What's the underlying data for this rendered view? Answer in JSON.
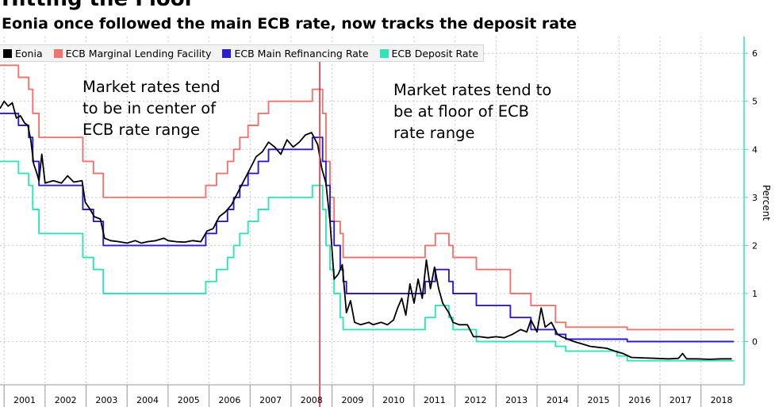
{
  "header": {
    "title": "Hitting the Floor",
    "subtitle": "Eonia once followed the main ECB rate, now tracks the deposit rate"
  },
  "legend": [
    {
      "label": "Eonia",
      "color": "#000000"
    },
    {
      "label": "ECB Marginal Lending Facility",
      "color": "#f2726f"
    },
    {
      "label": "ECB Main Refinancing Rate",
      "color": "#2b1bd1"
    },
    {
      "label": "ECB Deposit Rate",
      "color": "#2ee6b4"
    }
  ],
  "annotations": {
    "left": "Market rates tend\nto be in center of\nECB rate range",
    "right": "Market rates tend to\nbe at floor of ECB\nrate range"
  },
  "colors": {
    "marker_line": "#d8313f",
    "axis": "#2ee6b4",
    "grid": "#c8c8c8"
  },
  "chart_data": {
    "type": "line",
    "title": "Hitting the Floor",
    "subtitle": "Eonia once followed the main ECB rate, now tracks the deposit rate",
    "xlabel": "",
    "ylabel": "Percent",
    "xlim": [
      2000.9,
      2019.05
    ],
    "ylim": [
      -0.9,
      6.35
    ],
    "x_ticks": [
      "2001",
      "2002",
      "2003",
      "2004",
      "2005",
      "2006",
      "2007",
      "2008",
      "2009",
      "2010",
      "2011",
      "2012",
      "2013",
      "2014",
      "2015",
      "2016",
      "2017",
      "2018"
    ],
    "y_ticks": [
      0,
      1,
      2,
      3,
      4,
      5,
      6
    ],
    "vertical_marker_x": 2008.7,
    "series": [
      {
        "name": "ECB Marginal Lending Facility",
        "color": "#f2726f",
        "step": true,
        "points": [
          [
            2000.9,
            5.75
          ],
          [
            2001.35,
            5.5
          ],
          [
            2001.6,
            5.25
          ],
          [
            2001.7,
            4.75
          ],
          [
            2001.85,
            4.25
          ],
          [
            2002.92,
            3.75
          ],
          [
            2003.18,
            3.5
          ],
          [
            2003.42,
            3.0
          ],
          [
            2005.92,
            3.25
          ],
          [
            2006.18,
            3.5
          ],
          [
            2006.45,
            3.75
          ],
          [
            2006.6,
            4.0
          ],
          [
            2006.75,
            4.25
          ],
          [
            2006.95,
            4.5
          ],
          [
            2007.2,
            4.75
          ],
          [
            2007.45,
            5.0
          ],
          [
            2008.52,
            5.25
          ],
          [
            2008.77,
            4.75
          ],
          [
            2008.85,
            3.75
          ],
          [
            2008.95,
            3.0
          ],
          [
            2009.05,
            2.5
          ],
          [
            2009.2,
            2.25
          ],
          [
            2009.27,
            1.75
          ],
          [
            2011.27,
            2.0
          ],
          [
            2011.52,
            2.25
          ],
          [
            2011.85,
            2.0
          ],
          [
            2011.95,
            1.75
          ],
          [
            2012.52,
            1.5
          ],
          [
            2013.35,
            1.0
          ],
          [
            2013.85,
            0.75
          ],
          [
            2014.45,
            0.4
          ],
          [
            2014.7,
            0.3
          ],
          [
            2015.95,
            0.3
          ],
          [
            2016.2,
            0.25
          ],
          [
            2018.8,
            0.25
          ]
        ]
      },
      {
        "name": "ECB Main Refinancing Rate",
        "color": "#2b1bd1",
        "step": true,
        "points": [
          [
            2000.9,
            4.75
          ],
          [
            2001.35,
            4.5
          ],
          [
            2001.6,
            4.25
          ],
          [
            2001.7,
            3.75
          ],
          [
            2001.85,
            3.25
          ],
          [
            2002.92,
            2.75
          ],
          [
            2003.18,
            2.5
          ],
          [
            2003.42,
            2.0
          ],
          [
            2005.92,
            2.25
          ],
          [
            2006.18,
            2.5
          ],
          [
            2006.45,
            2.75
          ],
          [
            2006.6,
            3.0
          ],
          [
            2006.75,
            3.25
          ],
          [
            2006.95,
            3.5
          ],
          [
            2007.2,
            3.75
          ],
          [
            2007.45,
            4.0
          ],
          [
            2008.52,
            4.25
          ],
          [
            2008.77,
            3.75
          ],
          [
            2008.85,
            3.25
          ],
          [
            2008.95,
            2.5
          ],
          [
            2009.05,
            2.0
          ],
          [
            2009.2,
            1.5
          ],
          [
            2009.27,
            1.25
          ],
          [
            2009.35,
            1.0
          ],
          [
            2011.27,
            1.25
          ],
          [
            2011.52,
            1.5
          ],
          [
            2011.85,
            1.25
          ],
          [
            2011.95,
            1.0
          ],
          [
            2012.52,
            0.75
          ],
          [
            2013.35,
            0.5
          ],
          [
            2013.85,
            0.25
          ],
          [
            2014.45,
            0.15
          ],
          [
            2014.7,
            0.05
          ],
          [
            2016.2,
            0.0
          ],
          [
            2018.8,
            0.0
          ]
        ]
      },
      {
        "name": "ECB Deposit Rate",
        "color": "#2ee6b4",
        "step": true,
        "points": [
          [
            2000.9,
            3.75
          ],
          [
            2001.35,
            3.5
          ],
          [
            2001.6,
            3.25
          ],
          [
            2001.7,
            2.75
          ],
          [
            2001.85,
            2.25
          ],
          [
            2002.92,
            1.75
          ],
          [
            2003.18,
            1.5
          ],
          [
            2003.42,
            1.0
          ],
          [
            2005.92,
            1.25
          ],
          [
            2006.18,
            1.5
          ],
          [
            2006.45,
            1.75
          ],
          [
            2006.6,
            2.0
          ],
          [
            2006.75,
            2.25
          ],
          [
            2006.95,
            2.5
          ],
          [
            2007.2,
            2.75
          ],
          [
            2007.45,
            3.0
          ],
          [
            2008.52,
            3.25
          ],
          [
            2008.77,
            2.75
          ],
          [
            2008.85,
            2.0
          ],
          [
            2008.95,
            1.5
          ],
          [
            2009.05,
            1.0
          ],
          [
            2009.2,
            0.5
          ],
          [
            2009.27,
            0.25
          ],
          [
            2011.27,
            0.5
          ],
          [
            2011.52,
            0.75
          ],
          [
            2011.85,
            0.5
          ],
          [
            2011.95,
            0.25
          ],
          [
            2012.52,
            0.0
          ],
          [
            2014.45,
            -0.1
          ],
          [
            2014.7,
            -0.2
          ],
          [
            2015.95,
            -0.3
          ],
          [
            2016.2,
            -0.4
          ],
          [
            2018.8,
            -0.4
          ]
        ]
      },
      {
        "name": "Eonia",
        "color": "#000000",
        "step": false,
        "points": [
          [
            2000.9,
            4.85
          ],
          [
            2001.0,
            5.0
          ],
          [
            2001.1,
            4.9
          ],
          [
            2001.2,
            4.97
          ],
          [
            2001.3,
            4.65
          ],
          [
            2001.4,
            4.7
          ],
          [
            2001.5,
            4.55
          ],
          [
            2001.58,
            4.5
          ],
          [
            2001.65,
            4.2
          ],
          [
            2001.72,
            3.7
          ],
          [
            2001.8,
            3.5
          ],
          [
            2001.85,
            3.35
          ],
          [
            2001.92,
            3.9
          ],
          [
            2002.0,
            3.3
          ],
          [
            2002.2,
            3.35
          ],
          [
            2002.4,
            3.3
          ],
          [
            2002.55,
            3.45
          ],
          [
            2002.7,
            3.32
          ],
          [
            2002.9,
            3.35
          ],
          [
            2002.98,
            2.9
          ],
          [
            2003.1,
            2.75
          ],
          [
            2003.2,
            2.6
          ],
          [
            2003.35,
            2.55
          ],
          [
            2003.45,
            2.15
          ],
          [
            2003.6,
            2.1
          ],
          [
            2003.8,
            2.08
          ],
          [
            2004.0,
            2.05
          ],
          [
            2004.2,
            2.1
          ],
          [
            2004.35,
            2.05
          ],
          [
            2004.5,
            2.08
          ],
          [
            2004.7,
            2.1
          ],
          [
            2004.9,
            2.15
          ],
          [
            2005.0,
            2.1
          ],
          [
            2005.2,
            2.08
          ],
          [
            2005.4,
            2.07
          ],
          [
            2005.6,
            2.1
          ],
          [
            2005.8,
            2.08
          ],
          [
            2005.95,
            2.3
          ],
          [
            2006.1,
            2.35
          ],
          [
            2006.25,
            2.6
          ],
          [
            2006.4,
            2.7
          ],
          [
            2006.55,
            2.85
          ],
          [
            2006.7,
            3.1
          ],
          [
            2006.85,
            3.35
          ],
          [
            2007.0,
            3.6
          ],
          [
            2007.15,
            3.85
          ],
          [
            2007.3,
            3.95
          ],
          [
            2007.45,
            4.15
          ],
          [
            2007.6,
            4.05
          ],
          [
            2007.75,
            3.9
          ],
          [
            2007.9,
            4.2
          ],
          [
            2008.05,
            4.05
          ],
          [
            2008.2,
            4.15
          ],
          [
            2008.35,
            4.3
          ],
          [
            2008.5,
            4.35
          ],
          [
            2008.65,
            4.1
          ],
          [
            2008.75,
            3.6
          ],
          [
            2008.85,
            3.3
          ],
          [
            2008.95,
            2.5
          ],
          [
            2009.05,
            1.3
          ],
          [
            2009.15,
            1.4
          ],
          [
            2009.25,
            1.6
          ],
          [
            2009.35,
            0.6
          ],
          [
            2009.45,
            0.85
          ],
          [
            2009.55,
            0.4
          ],
          [
            2009.7,
            0.35
          ],
          [
            2009.9,
            0.4
          ],
          [
            2010.0,
            0.35
          ],
          [
            2010.2,
            0.4
          ],
          [
            2010.35,
            0.35
          ],
          [
            2010.5,
            0.45
          ],
          [
            2010.6,
            0.7
          ],
          [
            2010.7,
            0.9
          ],
          [
            2010.8,
            0.55
          ],
          [
            2010.9,
            1.2
          ],
          [
            2011.0,
            0.8
          ],
          [
            2011.1,
            1.3
          ],
          [
            2011.2,
            0.9
          ],
          [
            2011.3,
            1.7
          ],
          [
            2011.4,
            1.1
          ],
          [
            2011.5,
            1.55
          ],
          [
            2011.6,
            1.1
          ],
          [
            2011.7,
            0.8
          ],
          [
            2011.85,
            0.6
          ],
          [
            2011.95,
            0.4
          ],
          [
            2012.1,
            0.35
          ],
          [
            2012.3,
            0.35
          ],
          [
            2012.45,
            0.1
          ],
          [
            2012.6,
            0.1
          ],
          [
            2012.8,
            0.08
          ],
          [
            2013.0,
            0.1
          ],
          [
            2013.2,
            0.08
          ],
          [
            2013.4,
            0.15
          ],
          [
            2013.6,
            0.25
          ],
          [
            2013.75,
            0.2
          ],
          [
            2013.85,
            0.45
          ],
          [
            2014.0,
            0.2
          ],
          [
            2014.1,
            0.7
          ],
          [
            2014.2,
            0.3
          ],
          [
            2014.35,
            0.4
          ],
          [
            2014.5,
            0.15
          ],
          [
            2014.6,
            0.1
          ],
          [
            2014.75,
            0.05
          ],
          [
            2014.9,
            0.0
          ],
          [
            2015.1,
            -0.05
          ],
          [
            2015.3,
            -0.1
          ],
          [
            2015.5,
            -0.12
          ],
          [
            2015.7,
            -0.14
          ],
          [
            2015.9,
            -0.2
          ],
          [
            2016.1,
            -0.25
          ],
          [
            2016.3,
            -0.33
          ],
          [
            2016.6,
            -0.34
          ],
          [
            2016.9,
            -0.35
          ],
          [
            2017.2,
            -0.36
          ],
          [
            2017.45,
            -0.35
          ],
          [
            2017.55,
            -0.25
          ],
          [
            2017.65,
            -0.36
          ],
          [
            2017.9,
            -0.36
          ],
          [
            2018.2,
            -0.37
          ],
          [
            2018.5,
            -0.36
          ],
          [
            2018.75,
            -0.36
          ]
        ]
      }
    ]
  }
}
